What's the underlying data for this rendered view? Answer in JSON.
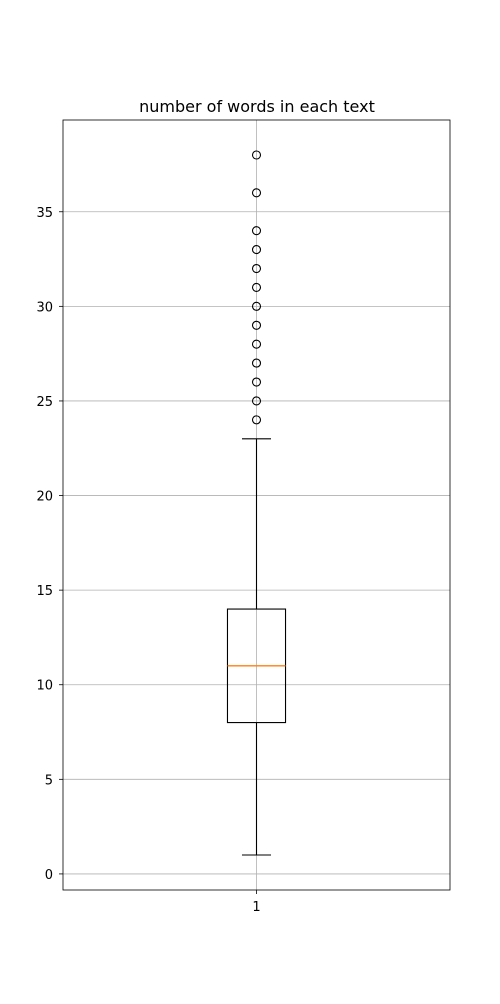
{
  "chart_data": {
    "type": "boxplot",
    "title": "number of words in each text",
    "xlabel": "",
    "ylabel": "",
    "categories": [
      "1"
    ],
    "ylim": [
      -0.85,
      39.85
    ],
    "yticks": [
      "0",
      "5",
      "10",
      "15",
      "20",
      "25",
      "30",
      "35"
    ],
    "grid": true,
    "boxes": [
      {
        "category": "1",
        "whisker_low": 1,
        "q1": 8,
        "median": 11,
        "q3": 14,
        "whisker_high": 23,
        "outliers": [
          24,
          25,
          26,
          27,
          28,
          29,
          30,
          31,
          32,
          33,
          34,
          36,
          38
        ]
      }
    ],
    "colors": {
      "box": "#000000",
      "median": "#ff7f0e",
      "grid": "#b0b0b0",
      "axes": "#000000"
    }
  }
}
